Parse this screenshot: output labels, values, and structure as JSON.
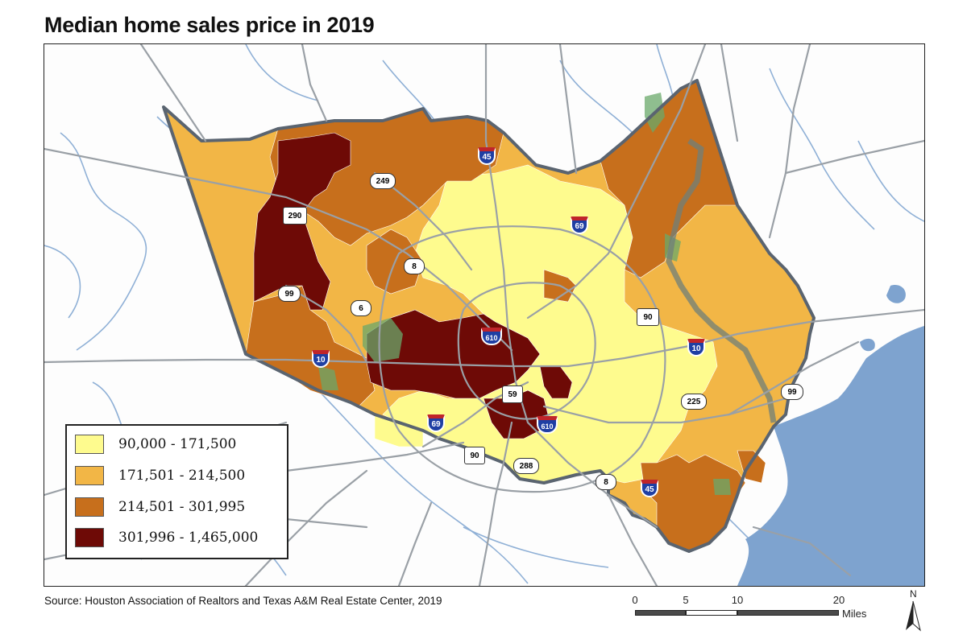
{
  "title": "Median home sales price in 2019",
  "source": "Source: Houston Association of Realtors and Texas A&M Real Estate Center, 2019",
  "legend": {
    "items": [
      {
        "label": "90,000 - 171,500",
        "color": "#fefb8e"
      },
      {
        "label": "171,501 - 214,500",
        "color": "#f2b646"
      },
      {
        "label": "214,501 - 301,995",
        "color": "#c76f1c"
      },
      {
        "label": "301,996 - 1,465,000",
        "color": "#6e0a06"
      }
    ]
  },
  "scale": {
    "ticks": [
      "0",
      "5",
      "10",
      "20"
    ],
    "units": "Miles"
  },
  "north_label": "N",
  "highway_shields": [
    {
      "label": "45",
      "kind": "interstate"
    },
    {
      "label": "249",
      "kind": "state"
    },
    {
      "label": "290",
      "kind": "us"
    },
    {
      "label": "69",
      "kind": "interstate"
    },
    {
      "label": "8",
      "kind": "state"
    },
    {
      "label": "99",
      "kind": "state"
    },
    {
      "label": "6",
      "kind": "state"
    },
    {
      "label": "610",
      "kind": "interstate"
    },
    {
      "label": "90",
      "kind": "us"
    },
    {
      "label": "10",
      "kind": "interstate"
    },
    {
      "label": "10",
      "kind": "interstate"
    },
    {
      "label": "59",
      "kind": "us"
    },
    {
      "label": "225",
      "kind": "state"
    },
    {
      "label": "99",
      "kind": "state"
    },
    {
      "label": "69",
      "kind": "interstate"
    },
    {
      "label": "610",
      "kind": "interstate"
    },
    {
      "label": "90",
      "kind": "us"
    },
    {
      "label": "288",
      "kind": "state"
    },
    {
      "label": "8",
      "kind": "state"
    },
    {
      "label": "45",
      "kind": "interstate"
    }
  ],
  "colors": {
    "water": "#7ea3cf",
    "county_outline": "#5a6470",
    "roads": "#9aa0a6",
    "parks": "#6aa86a",
    "interstate_shield": "#1f3fa3"
  }
}
